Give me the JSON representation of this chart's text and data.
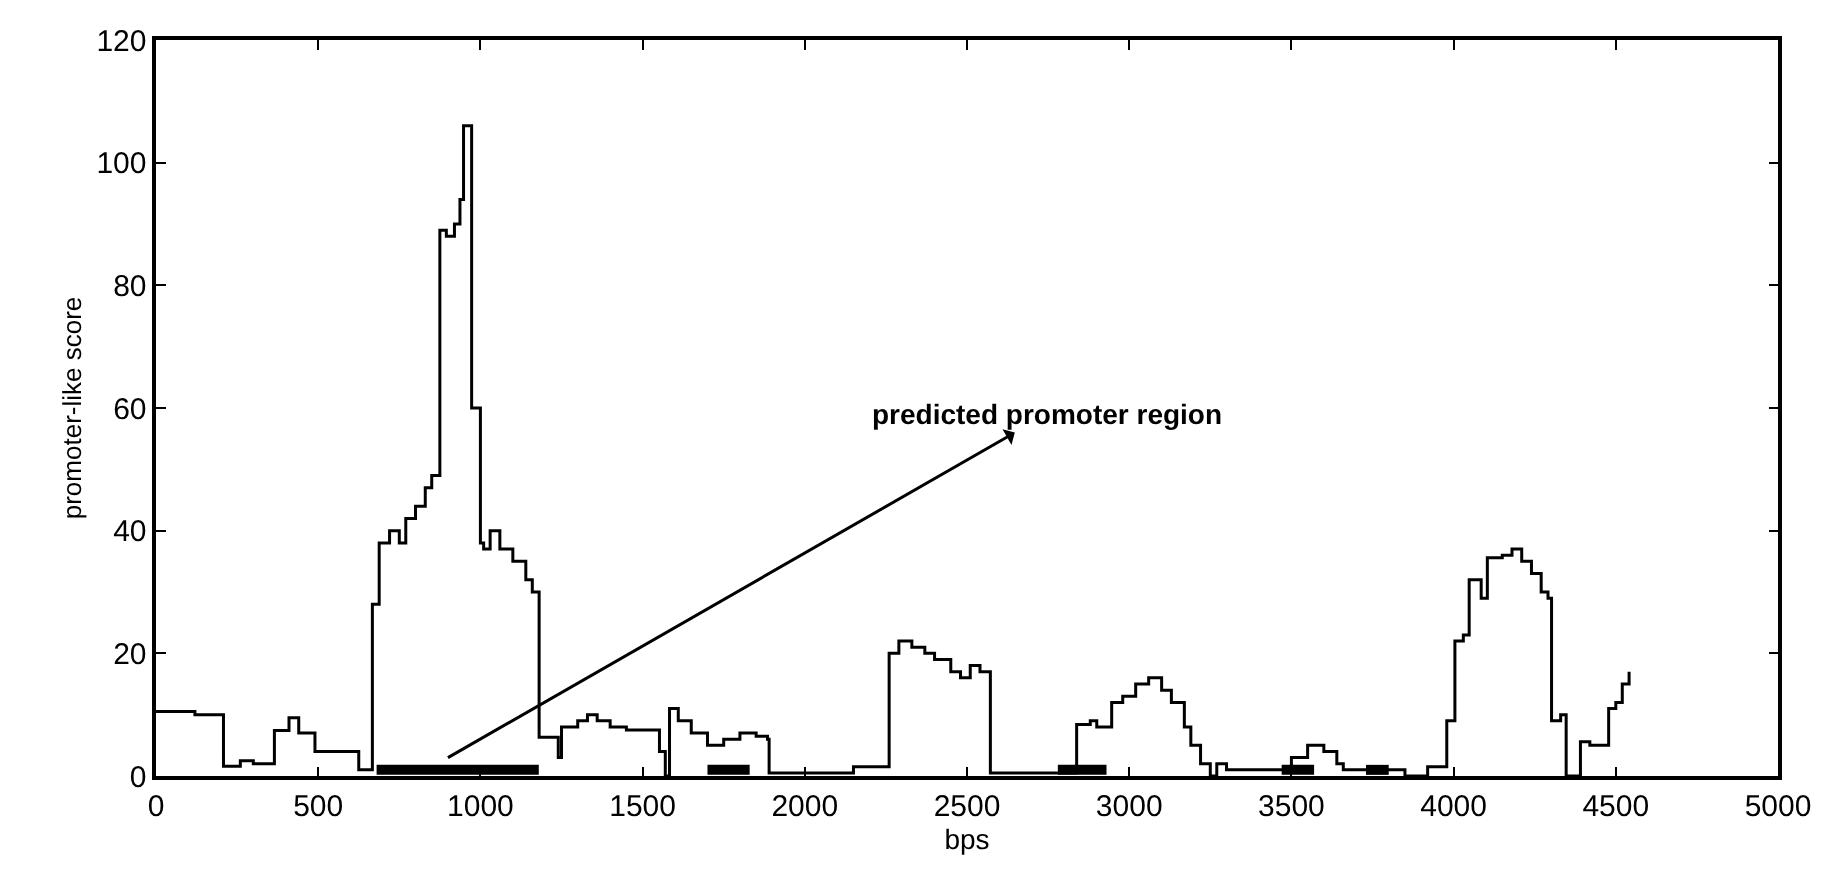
{
  "chart_data": {
    "type": "step",
    "xlabel": "bps",
    "ylabel": "promoter-like score",
    "xlim": [
      0,
      5000
    ],
    "ylim": [
      0,
      120
    ],
    "xticks": [
      0,
      500,
      1000,
      1500,
      2000,
      2500,
      3000,
      3500,
      4000,
      4500,
      5000
    ],
    "yticks": [
      0,
      20,
      40,
      60,
      80,
      100,
      120
    ],
    "series": [
      {
        "color": "#000000",
        "x": [
          0,
          120,
          188,
          208,
          260,
          300,
          354,
          365,
          410,
          440,
          490,
          625,
          667,
          688,
          720,
          750,
          770,
          800,
          830,
          850,
          875,
          895,
          920,
          937,
          948,
          973,
          1000,
          1010,
          1030,
          1060,
          1100,
          1140,
          1160,
          1181,
          1240,
          1250,
          1270,
          1300,
          1330,
          1360,
          1400,
          1450,
          1552,
          1570,
          1583,
          1610,
          1650,
          1700,
          1750,
          1800,
          1850,
          1885,
          1890,
          2150,
          2260,
          2290,
          2330,
          2370,
          2400,
          2450,
          2480,
          2510,
          2540,
          2572,
          2838,
          2880,
          2900,
          2946,
          2980,
          3020,
          3060,
          3100,
          3130,
          3170,
          3190,
          3220,
          3250,
          3270,
          3300,
          3500,
          3550,
          3600,
          3640,
          3660,
          3850,
          3920,
          3979,
          4004,
          4030,
          4048,
          4085,
          4104,
          4150,
          4180,
          4210,
          4240,
          4270,
          4291,
          4302,
          4330,
          4347,
          4391,
          4420,
          4478,
          4500,
          4520,
          4541
        ],
        "values": [
          10.5,
          10,
          10,
          1.6,
          2.5,
          2,
          2,
          7.4,
          9.5,
          7,
          4,
          1,
          28,
          38,
          40,
          38,
          42,
          44,
          47,
          49,
          89,
          88,
          90,
          94,
          106,
          60,
          38,
          37,
          40,
          37,
          35,
          32,
          30,
          6.3,
          3,
          8,
          8,
          9,
          10,
          9,
          8,
          7.5,
          4,
          0,
          11,
          9,
          7,
          5,
          6,
          7,
          6.5,
          6,
          0.5,
          1.5,
          20,
          22,
          21,
          20,
          19,
          17,
          16,
          18,
          17,
          0.5,
          8.4,
          9,
          8,
          12,
          13,
          15,
          16,
          14,
          12,
          8,
          5,
          2,
          0,
          2,
          1,
          3,
          5,
          4,
          2,
          1,
          0,
          1.5,
          9,
          22,
          23,
          32,
          29,
          35.6,
          36,
          37,
          35,
          33,
          30,
          29,
          9,
          10,
          0,
          5.6,
          5,
          11,
          12,
          15,
          17
        ]
      },
      {
        "type": "line",
        "color": "#000000",
        "x": [
          680,
          1180
        ],
        "values": [
          1,
          1
        ]
      },
      {
        "type": "line",
        "color": "#000000",
        "x": [
          1700,
          1830
        ],
        "values": [
          1,
          1
        ]
      },
      {
        "type": "line",
        "color": "#000000",
        "x": [
          2780,
          2930
        ],
        "values": [
          1,
          1
        ]
      },
      {
        "type": "line",
        "color": "#000000",
        "x": [
          3470,
          3570
        ],
        "values": [
          1,
          1
        ]
      },
      {
        "type": "line",
        "color": "#000000",
        "x": [
          3730,
          3800
        ],
        "values": [
          1,
          1
        ]
      }
    ],
    "annotations": [
      {
        "text": "predicted promoter region",
        "x": 900,
        "y": 3
      }
    ]
  }
}
